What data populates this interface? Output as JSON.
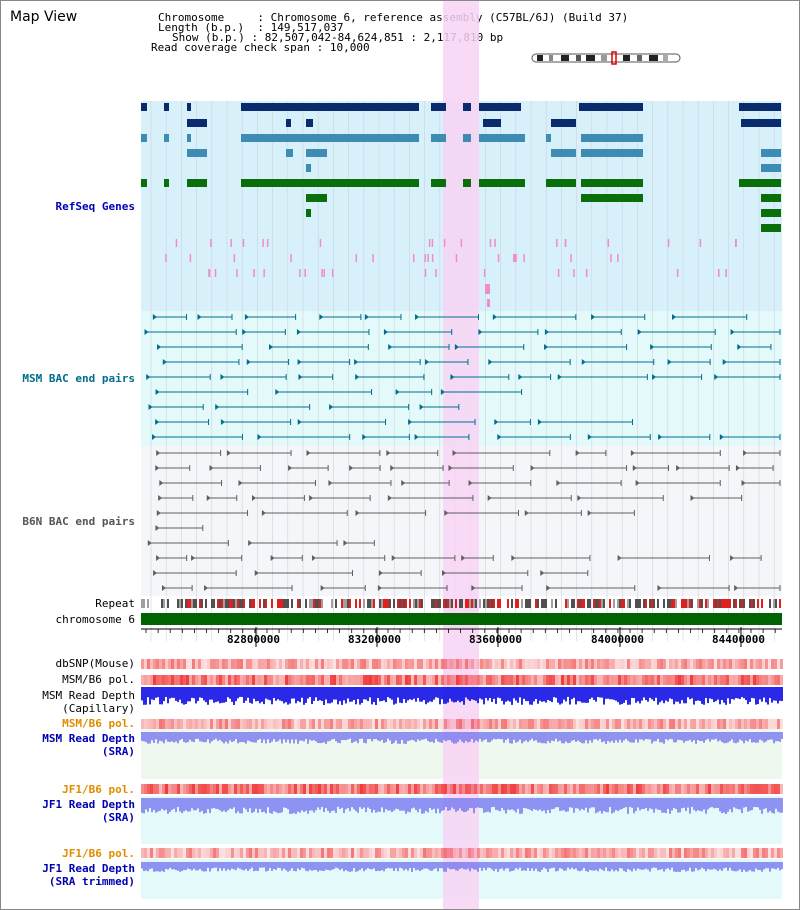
{
  "title": "Map View",
  "info": {
    "chromosome_label": "Chromosome",
    "chromosome_value": "Chromosome 6, reference assembly (C57BL/6J) (Build 37)",
    "length_label": "Length (b.p.)",
    "length_value": "149,517,037",
    "show_label": "Show (b.p.)",
    "show_value": "82,507,042-84,624,851 : 2,117,810 bp",
    "coverage_label": "Read coverage check span",
    "coverage_value": "10,000"
  },
  "tracks": {
    "refseq": "RefSeq Genes",
    "msm_bac": "MSM BAC end pairs",
    "b6n_bac": "B6N BAC end pairs",
    "repeat": "Repeat",
    "chromosome": "chromosome 6",
    "dbsnp": "dbSNP(Mouse)",
    "msm_b6_pol": "MSM/B6 pol.",
    "msm_depth_cap_1": "MSM Read Depth",
    "msm_depth_cap_2": "(Capillary)",
    "msm_b6_pol_2": "MSM/B6 pol.",
    "msm_depth_sra_1": "MSM Read Depth",
    "msm_depth_sra_2": "(SRA)",
    "jf1_b6_pol": "JF1/B6 pol.",
    "jf1_depth_sra_1": "JF1 Read Depth",
    "jf1_depth_sra_2": "(SRA)",
    "jf1_b6_pol_2": "JF1/B6 pol.",
    "jf1_depth_trim_1": "JF1 Read Depth",
    "jf1_depth_trim_2": "(SRA trimmed)"
  },
  "axis": {
    "ticks": [
      "82800000",
      "83200000",
      "83600000",
      "84000000",
      "84400000"
    ]
  },
  "colors": {
    "refseq_bg": "#d8f0fa",
    "msm_bg": "#e4fafa",
    "b6n_bg": "#f4f6fa",
    "highlight": "#f8d4f4",
    "gene_dark": "#0a2a6e",
    "gene_mid": "#3e8cb4",
    "gene_green": "#0a6e0a",
    "bac_teal": "#006e8c",
    "bac_gray": "#606060",
    "depth_blue": "#1e1ee6",
    "depth_light": "#7878f0",
    "pol_red": "#f03c3c"
  }
}
